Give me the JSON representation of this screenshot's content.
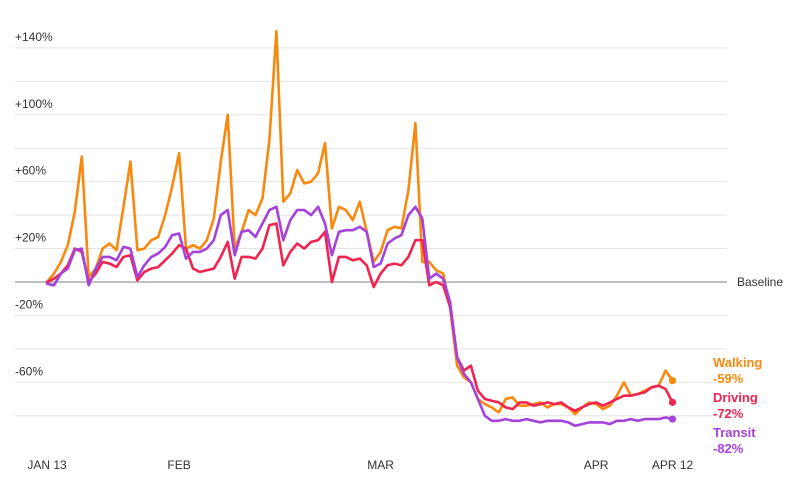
{
  "chart_data": {
    "type": "line",
    "title": "",
    "xlabel": "",
    "ylabel": "",
    "ylim": [
      -100,
      155
    ],
    "grid": true,
    "legend": "right-end",
    "baseline_label": "Baseline",
    "x_ticks": [
      {
        "day": 0,
        "label": "JAN 13"
      },
      {
        "day": 19,
        "label": "FEB"
      },
      {
        "day": 48,
        "label": "MAR"
      },
      {
        "day": 79,
        "label": "APR"
      },
      {
        "day": 90,
        "label": "APR 12"
      }
    ],
    "y_ticks": [
      {
        "value": 140,
        "label": "+140%"
      },
      {
        "value": 100,
        "label": "+100%"
      },
      {
        "value": 60,
        "label": "+60%"
      },
      {
        "value": 20,
        "label": "+20%"
      },
      {
        "value": -20,
        "label": "-20%"
      },
      {
        "value": -60,
        "label": "-60%"
      }
    ],
    "grid_values": [
      140,
      120,
      100,
      80,
      60,
      40,
      20,
      -20,
      -40,
      -60,
      -80
    ],
    "series": [
      {
        "name": "Walking",
        "label": "-59%",
        "color": "#F7890E",
        "values": [
          0,
          5,
          12,
          22,
          42,
          75,
          3,
          8,
          20,
          23,
          19,
          45,
          72,
          19,
          20,
          25,
          27,
          40,
          57,
          77,
          20,
          22,
          20,
          25,
          38,
          72,
          100,
          20,
          30,
          43,
          40,
          50,
          85,
          150,
          48,
          53,
          67,
          59,
          60,
          65,
          83,
          32,
          45,
          43,
          37,
          48,
          30,
          12,
          18,
          31,
          33,
          32,
          55,
          95,
          12,
          12,
          7,
          5,
          -15,
          -50,
          -57,
          -60,
          -70,
          -73,
          -75,
          -78,
          -70,
          -69,
          -74,
          -74,
          -73,
          -72,
          -75,
          -73,
          -73,
          -75,
          -79,
          -75,
          -72,
          -73,
          -76,
          -74,
          -68,
          -60,
          -68,
          -67,
          -65,
          -63,
          -62,
          -53,
          -59
        ]
      },
      {
        "name": "Driving",
        "label": "-72%",
        "color": "#F0254F",
        "values": [
          0,
          2,
          5,
          10,
          20,
          18,
          0,
          5,
          12,
          11,
          9,
          15,
          16,
          1,
          6,
          8,
          9,
          13,
          17,
          22,
          20,
          8,
          6,
          7,
          8,
          15,
          24,
          2,
          15,
          15,
          14,
          20,
          34,
          35,
          10,
          18,
          23,
          20,
          24,
          25,
          30,
          0,
          15,
          15,
          13,
          14,
          10,
          -3,
          5,
          10,
          11,
          10,
          15,
          25,
          25,
          -2,
          0,
          -2,
          -15,
          -45,
          -53,
          -50,
          -65,
          -70,
          -71,
          -72,
          -75,
          -76,
          -72,
          -72,
          -74,
          -73,
          -72,
          -73,
          -72,
          -75,
          -77,
          -75,
          -73,
          -72,
          -74,
          -72,
          -70,
          -68,
          -68,
          -67,
          -66,
          -63,
          -62,
          -64,
          -72
        ]
      },
      {
        "name": "Transit",
        "label": "-82%",
        "color": "#A642DC",
        "values": [
          -1,
          -2,
          5,
          8,
          19,
          20,
          -2,
          8,
          15,
          15,
          13,
          21,
          20,
          3,
          10,
          15,
          17,
          21,
          28,
          29,
          14,
          18,
          18,
          20,
          25,
          40,
          43,
          16,
          30,
          31,
          27,
          35,
          43,
          45,
          25,
          37,
          43,
          43,
          40,
          45,
          35,
          16,
          30,
          31,
          31,
          33,
          30,
          9,
          11,
          23,
          26,
          28,
          40,
          45,
          38,
          2,
          5,
          2,
          -12,
          -45,
          -55,
          -60,
          -70,
          -80,
          -83,
          -83,
          -82,
          -83,
          -83,
          -82,
          -83,
          -84,
          -83,
          -83,
          -83,
          -84,
          -86,
          -85,
          -84,
          -84,
          -84,
          -85,
          -83,
          -83,
          -82,
          -83,
          -82,
          -82,
          -82,
          -81,
          -82
        ]
      }
    ]
  }
}
